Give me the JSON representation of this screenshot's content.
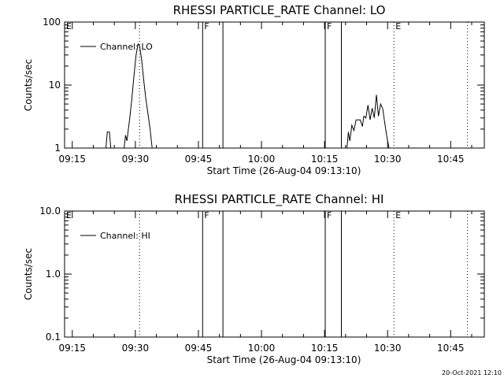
{
  "chart_data": [
    {
      "type": "line",
      "title": "RHESSI PARTICLE_RATE Channel: LO",
      "xlabel": "Start Time (26-Aug-04 09:13:10)",
      "ylabel": "Counts/sec",
      "yscale": "log",
      "ylim": [
        1,
        100
      ],
      "yticks": [
        1,
        10,
        100
      ],
      "ytick_labels": [
        "1",
        "10",
        "100"
      ],
      "xlim": [
        "09:13:10",
        "10:53:00"
      ],
      "xticks": [
        "09:15",
        "09:30",
        "09:45",
        "10:00",
        "10:15",
        "10:30",
        "10:45"
      ],
      "grid": false,
      "legend": {
        "placement": "top-left",
        "entries": [
          "Channel: LO"
        ]
      },
      "series": [
        {
          "name": "Channel: LO",
          "segments": [
            [
              [
                "09:23:00",
                1.0
              ],
              [
                "09:23:20",
                1.8
              ],
              [
                "09:23:50",
                1.8
              ],
              [
                "09:24:10",
                1.0
              ]
            ],
            [
              [
                "09:27:20",
                1.0
              ],
              [
                "09:27:40",
                1.6
              ],
              [
                "09:28:00",
                1.3
              ],
              [
                "09:28:20",
                2.0
              ],
              [
                "09:28:40",
                3.0
              ],
              [
                "09:29:10",
                6.0
              ],
              [
                "09:29:40",
                14.0
              ],
              [
                "09:30:10",
                30.0
              ],
              [
                "09:30:40",
                45.0
              ],
              [
                "09:31:00",
                42.0
              ],
              [
                "09:31:30",
                25.0
              ],
              [
                "09:32:00",
                12.0
              ],
              [
                "09:32:30",
                6.0
              ],
              [
                "09:33:00",
                3.5
              ],
              [
                "09:33:30",
                2.0
              ],
              [
                "09:34:00",
                1.0
              ]
            ],
            [
              [
                "10:20:20",
                1.0
              ],
              [
                "10:20:40",
                1.8
              ],
              [
                "10:21:00",
                1.3
              ],
              [
                "10:21:30",
                2.3
              ],
              [
                "10:22:00",
                1.9
              ],
              [
                "10:22:30",
                2.8
              ],
              [
                "10:23:30",
                2.8
              ],
              [
                "10:24:00",
                2.2
              ],
              [
                "10:24:20",
                3.2
              ],
              [
                "10:24:50",
                3.0
              ],
              [
                "10:25:20",
                4.8
              ],
              [
                "10:25:50",
                2.8
              ],
              [
                "10:26:20",
                4.3
              ],
              [
                "10:26:50",
                3.0
              ],
              [
                "10:27:20",
                7.0
              ],
              [
                "10:27:50",
                3.2
              ],
              [
                "10:28:20",
                5.0
              ],
              [
                "10:28:50",
                4.2
              ],
              [
                "10:29:20",
                2.5
              ],
              [
                "10:29:50",
                1.5
              ],
              [
                "10:30:20",
                1.0
              ]
            ]
          ]
        }
      ],
      "event_markers": [
        {
          "label": "E",
          "time": "09:13:10",
          "style": "dotted"
        },
        {
          "label": "",
          "time": "09:31:00",
          "style": "dotted"
        },
        {
          "label": "F",
          "time": "09:46:00",
          "style": "solid"
        },
        {
          "label": "",
          "time": "09:50:50",
          "style": "solid"
        },
        {
          "label": "F",
          "time": "10:15:10",
          "style": "solid"
        },
        {
          "label": "",
          "time": "10:19:00",
          "style": "solid"
        },
        {
          "label": "E",
          "time": "10:31:30",
          "style": "dotted"
        },
        {
          "label": "",
          "time": "10:49:00",
          "style": "dotted"
        }
      ]
    },
    {
      "type": "line",
      "title": "RHESSI PARTICLE_RATE Channel: HI",
      "xlabel": "Start Time (26-Aug-04 09:13:10)",
      "ylabel": "Counts/sec",
      "yscale": "log",
      "ylim": [
        0.1,
        10
      ],
      "yticks": [
        0.1,
        1,
        10
      ],
      "ytick_labels": [
        "0.1",
        "1.0",
        "10.0"
      ],
      "xlim": [
        "09:13:10",
        "10:53:00"
      ],
      "xticks": [
        "09:15",
        "09:30",
        "09:45",
        "10:00",
        "10:15",
        "10:30",
        "10:45"
      ],
      "grid": false,
      "legend": {
        "placement": "top-left",
        "entries": [
          "Channel: HI"
        ]
      },
      "series": [
        {
          "name": "Channel: HI",
          "segments": []
        }
      ],
      "event_markers": [
        {
          "label": "E",
          "time": "09:13:10",
          "style": "dotted"
        },
        {
          "label": "",
          "time": "09:31:00",
          "style": "dotted"
        },
        {
          "label": "F",
          "time": "09:46:00",
          "style": "solid"
        },
        {
          "label": "",
          "time": "09:50:50",
          "style": "solid"
        },
        {
          "label": "F",
          "time": "10:15:10",
          "style": "solid"
        },
        {
          "label": "",
          "time": "10:19:00",
          "style": "solid"
        },
        {
          "label": "E",
          "time": "10:31:30",
          "style": "dotted"
        },
        {
          "label": "",
          "time": "10:49:00",
          "style": "dotted"
        }
      ]
    }
  ],
  "footer": {
    "timestamp": "20-Oct-2021 12:10"
  }
}
